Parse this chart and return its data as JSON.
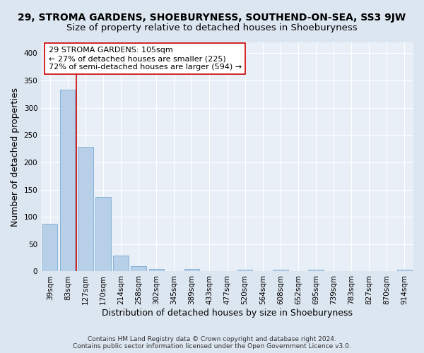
{
  "title": "29, STROMA GARDENS, SHOEBURYNESS, SOUTHEND-ON-SEA, SS3 9JW",
  "subtitle": "Size of property relative to detached houses in Shoeburyness",
  "xlabel": "Distribution of detached houses by size in Shoeburyness",
  "ylabel": "Number of detached properties",
  "footer_line1": "Contains HM Land Registry data © Crown copyright and database right 2024.",
  "footer_line2": "Contains public sector information licensed under the Open Government Licence v3.0.",
  "categories": [
    "39sqm",
    "83sqm",
    "127sqm",
    "170sqm",
    "214sqm",
    "258sqm",
    "302sqm",
    "345sqm",
    "389sqm",
    "433sqm",
    "477sqm",
    "520sqm",
    "564sqm",
    "608sqm",
    "652sqm",
    "695sqm",
    "739sqm",
    "783sqm",
    "827sqm",
    "870sqm",
    "914sqm"
  ],
  "values": [
    87,
    333,
    229,
    136,
    29,
    10,
    5,
    0,
    5,
    0,
    0,
    3,
    0,
    3,
    0,
    3,
    0,
    0,
    0,
    0,
    3
  ],
  "bar_color": "#b8cfe8",
  "bar_edge_color": "#7aacd4",
  "vline_x_idx": 1.5,
  "vline_color": "#cc0000",
  "annotation_text": "29 STROMA GARDENS: 105sqm\n← 27% of detached houses are smaller (225)\n72% of semi-detached houses are larger (594) →",
  "annotation_box_color": "#ffffff",
  "annotation_box_edge": "#cc0000",
  "ylim": [
    0,
    420
  ],
  "yticks": [
    0,
    50,
    100,
    150,
    200,
    250,
    300,
    350,
    400
  ],
  "title_fontsize": 10,
  "subtitle_fontsize": 9.5,
  "xlabel_fontsize": 9,
  "ylabel_fontsize": 9,
  "tick_fontsize": 7.5,
  "annotation_fontsize": 8,
  "bg_color": "#dce6f0",
  "plot_bg_color": "#e8eff7"
}
